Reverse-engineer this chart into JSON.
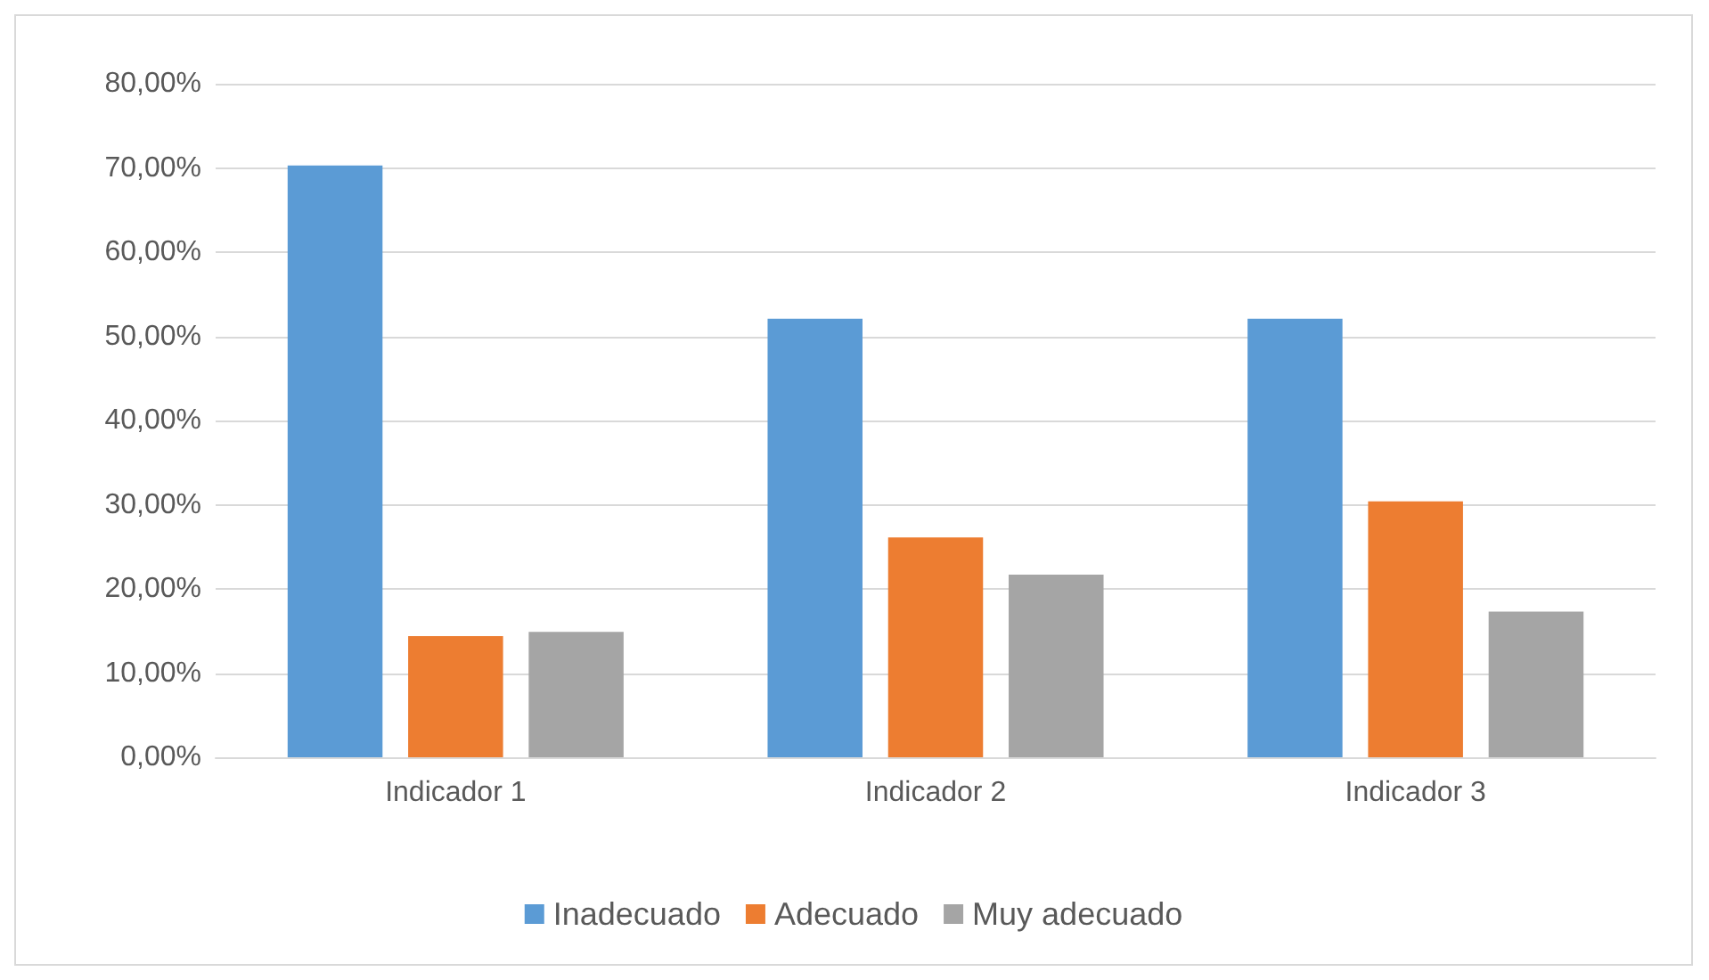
{
  "chart_data": {
    "type": "bar",
    "categories": [
      "Indicador 1",
      "Indicador 2",
      "Indicador 3"
    ],
    "series": [
      {
        "name": "Inadecuado",
        "color": "#5b9bd5",
        "values": [
          70.3,
          52.1,
          52.1
        ]
      },
      {
        "name": "Adecuado",
        "color": "#ed7d31",
        "values": [
          14.4,
          26.1,
          30.4
        ]
      },
      {
        "name": "Muy adecuado",
        "color": "#a5a5a5",
        "values": [
          14.9,
          21.7,
          17.3
        ]
      }
    ],
    "ylim": [
      0,
      80
    ],
    "yticks": [
      {
        "value": 0,
        "label": "0,00%"
      },
      {
        "value": 10,
        "label": "10,00%"
      },
      {
        "value": 20,
        "label": "20,00%"
      },
      {
        "value": 30,
        "label": "30,00%"
      },
      {
        "value": 40,
        "label": "40,00%"
      },
      {
        "value": 50,
        "label": "50,00%"
      },
      {
        "value": 60,
        "label": "60,00%"
      },
      {
        "value": 70,
        "label": "70,00%"
      },
      {
        "value": 80,
        "label": "80,00%"
      }
    ],
    "grid": "y",
    "legend": "bottom"
  }
}
